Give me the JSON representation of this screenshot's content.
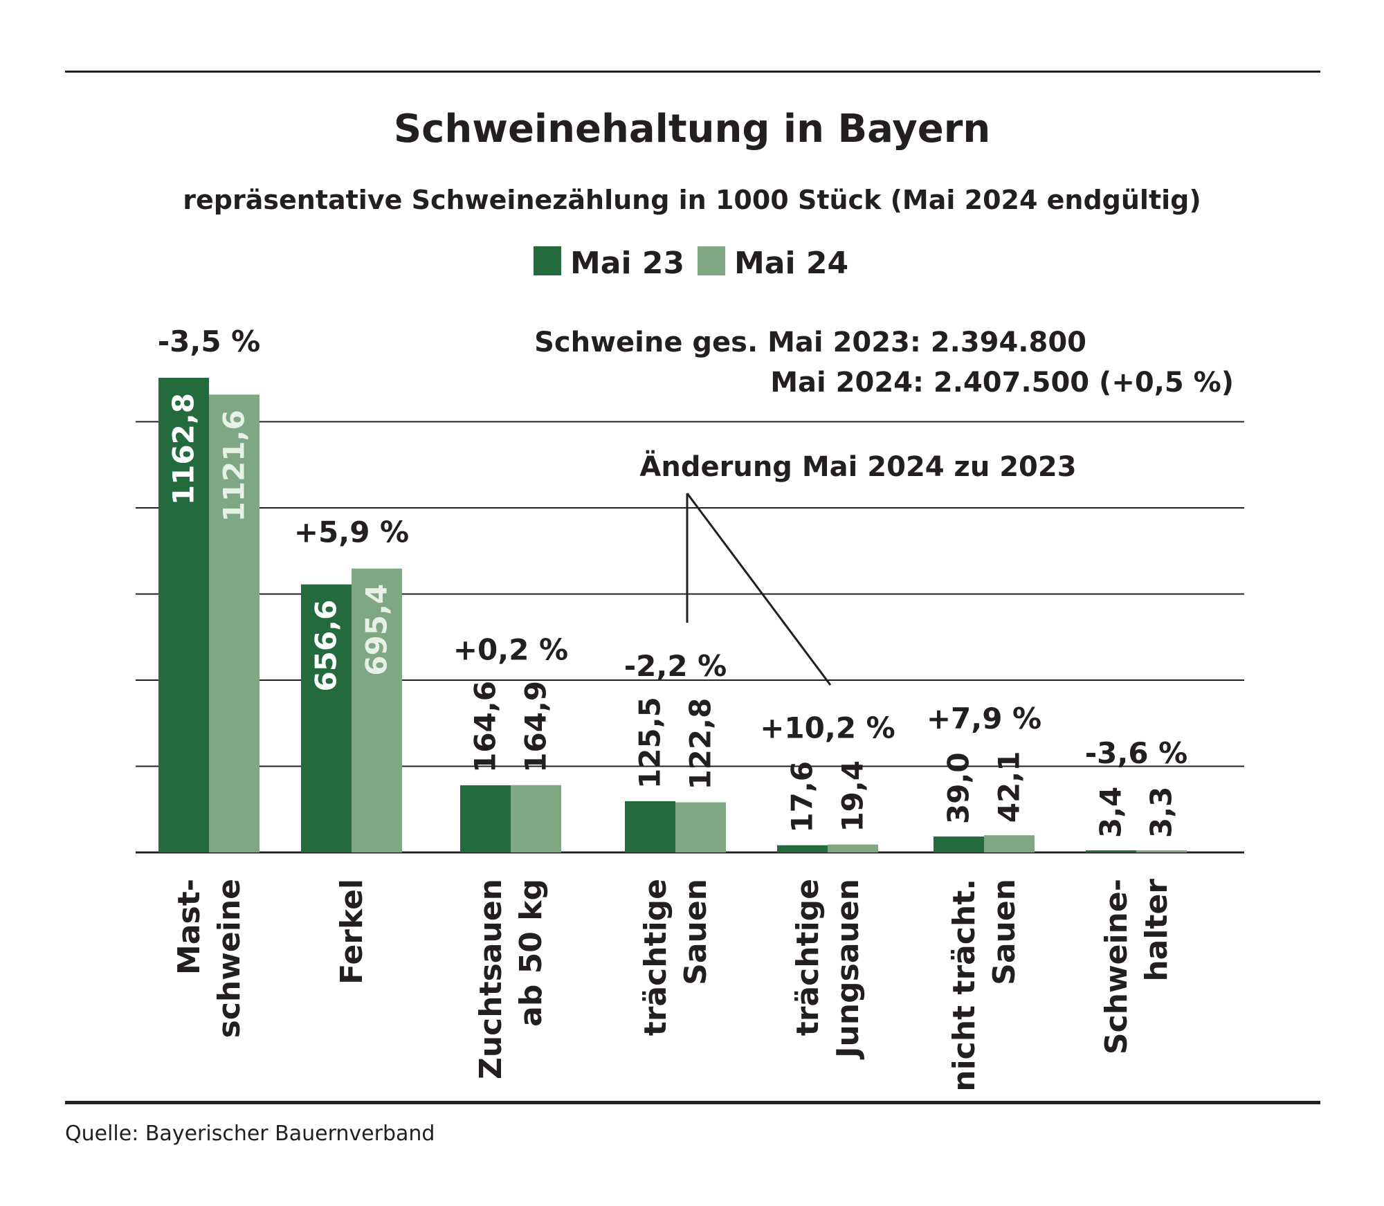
{
  "title": "Schweinehaltung in Bayern",
  "subtitle": "repräsentative Schweinezählung in 1000 Stück (Mai 2024 endgültig)",
  "legend": [
    {
      "label": "Mai 23",
      "color": "#236a3c"
    },
    {
      "label": "Mai 24",
      "color": "#80a784"
    }
  ],
  "totals": {
    "line1": "Schweine ges. Mai 2023: 2.394.800",
    "line2": "Mai 2024: 2.407.500 (+0,5 %)"
  },
  "change_annotation": "Änderung Mai 2024 zu 2023",
  "source": "Quelle: Bayerischer Bauernverband",
  "chart_data": {
    "type": "bar",
    "categories": [
      [
        "Mast-",
        "schweine"
      ],
      [
        "Ferkel"
      ],
      [
        "Zuchtsauen",
        "ab 50 kg"
      ],
      [
        "trächtige",
        "Sauen"
      ],
      [
        "trächtige",
        "Jungsauen"
      ],
      [
        "nicht trächt.",
        "Sauen"
      ],
      [
        "Schweine-",
        "halter"
      ]
    ],
    "series": [
      {
        "name": "Mai 23",
        "color": "#236a3c",
        "values": [
          1162.8,
          656.6,
          164.6,
          125.5,
          17.6,
          39.0,
          3.4
        ],
        "labels": [
          "1162,8",
          "656,6",
          "164,6",
          "125,5",
          "17,6",
          "39,0",
          "3,4"
        ]
      },
      {
        "name": "Mai 24",
        "color": "#80a784",
        "values": [
          1121.6,
          695.4,
          164.9,
          122.8,
          19.4,
          42.1,
          3.3
        ],
        "labels": [
          "1121,6",
          "695,4",
          "164,9",
          "122,8",
          "19,4",
          "42,1",
          "3,3"
        ]
      }
    ],
    "changes": [
      "-3,5 %",
      "+5,9 %",
      "+0,2 %",
      "-2,2 %",
      "+10,2 %",
      "+7,9 %",
      "-3,6 %"
    ],
    "ylim": [
      0,
      1162.8
    ],
    "grid": true,
    "legend_position": "top-center"
  }
}
